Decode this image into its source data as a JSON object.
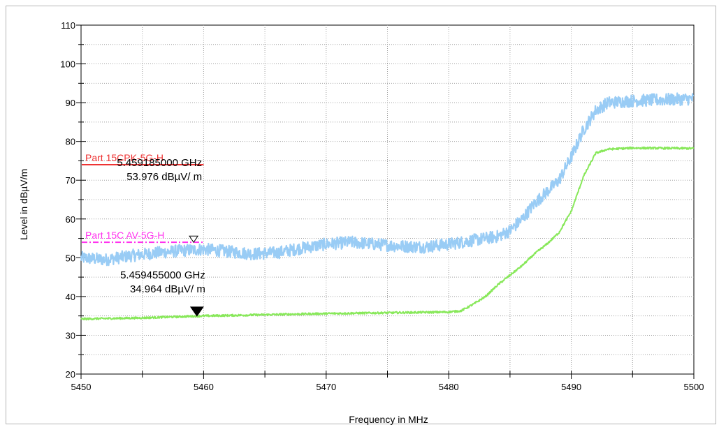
{
  "chart_data": {
    "type": "line",
    "xlabel": "Frequency in MHz",
    "ylabel": "Level in dBµV/m",
    "xlim": [
      5450,
      5500
    ],
    "ylim": [
      20,
      110
    ],
    "x_ticks": [
      5450,
      5460,
      5470,
      5480,
      5490,
      5500
    ],
    "y_ticks": [
      20,
      30,
      40,
      50,
      60,
      70,
      80,
      90,
      100,
      110
    ],
    "x_minor_step": 5,
    "y_minor_step": 5,
    "grid": "dotted",
    "series": [
      {
        "color": "#99ccf5",
        "noise": 1.6,
        "points": [
          [
            5450,
            50
          ],
          [
            5452,
            49.5
          ],
          [
            5454,
            50.5
          ],
          [
            5456,
            51.2
          ],
          [
            5458,
            51.8
          ],
          [
            5460,
            52.2
          ],
          [
            5462,
            51.6
          ],
          [
            5464,
            51
          ],
          [
            5466,
            51.3
          ],
          [
            5468,
            52.5
          ],
          [
            5470,
            53.5
          ],
          [
            5472,
            54
          ],
          [
            5474,
            53.5
          ],
          [
            5476,
            53
          ],
          [
            5478,
            52.8
          ],
          [
            5480,
            53.5
          ],
          [
            5482,
            54.5
          ],
          [
            5484,
            55.5
          ],
          [
            5485,
            57
          ],
          [
            5486,
            60
          ],
          [
            5487,
            64
          ],
          [
            5488,
            67
          ],
          [
            5489,
            70
          ],
          [
            5490,
            76
          ],
          [
            5491,
            83
          ],
          [
            5492,
            88
          ],
          [
            5493,
            90
          ],
          [
            5495,
            90.5
          ],
          [
            5500,
            91
          ]
        ]
      },
      {
        "color": "#88e85a",
        "noise": 0.25,
        "points": [
          [
            5450,
            34.2
          ],
          [
            5455,
            34.5
          ],
          [
            5460,
            35
          ],
          [
            5465,
            35.3
          ],
          [
            5470,
            35.6
          ],
          [
            5475,
            35.8
          ],
          [
            5480,
            36
          ],
          [
            5481,
            36.3
          ],
          [
            5482,
            38
          ],
          [
            5483,
            40
          ],
          [
            5484,
            43
          ],
          [
            5485,
            45.5
          ],
          [
            5486,
            48
          ],
          [
            5487,
            51
          ],
          [
            5488,
            53.5
          ],
          [
            5489,
            56.5
          ],
          [
            5490,
            62
          ],
          [
            5491,
            71
          ],
          [
            5492,
            77
          ],
          [
            5493,
            78
          ],
          [
            5495,
            78.3
          ],
          [
            5500,
            78.2
          ]
        ]
      }
    ],
    "limits": [
      {
        "name": "Part 15CPK-5G-H",
        "value": 74,
        "color": "#ee3333",
        "style": "solid",
        "x_end": 5460
      },
      {
        "name": "Part 15C AV-5G-H",
        "value": 54,
        "color": "#ff33ee",
        "style": "dashdot",
        "x_end": 5460
      }
    ],
    "markers": [
      {
        "x": 5459.185,
        "y": 53.976,
        "symbol": "open-triangle",
        "freq_label": "5.459185000 GHz",
        "level_label": "53.976 dBµV/ m"
      },
      {
        "x": 5459.455,
        "y": 34.964,
        "symbol": "filled-triangle",
        "freq_label": "5.459455000 GHz",
        "level_label": "34.964 dBµV/ m"
      }
    ]
  }
}
